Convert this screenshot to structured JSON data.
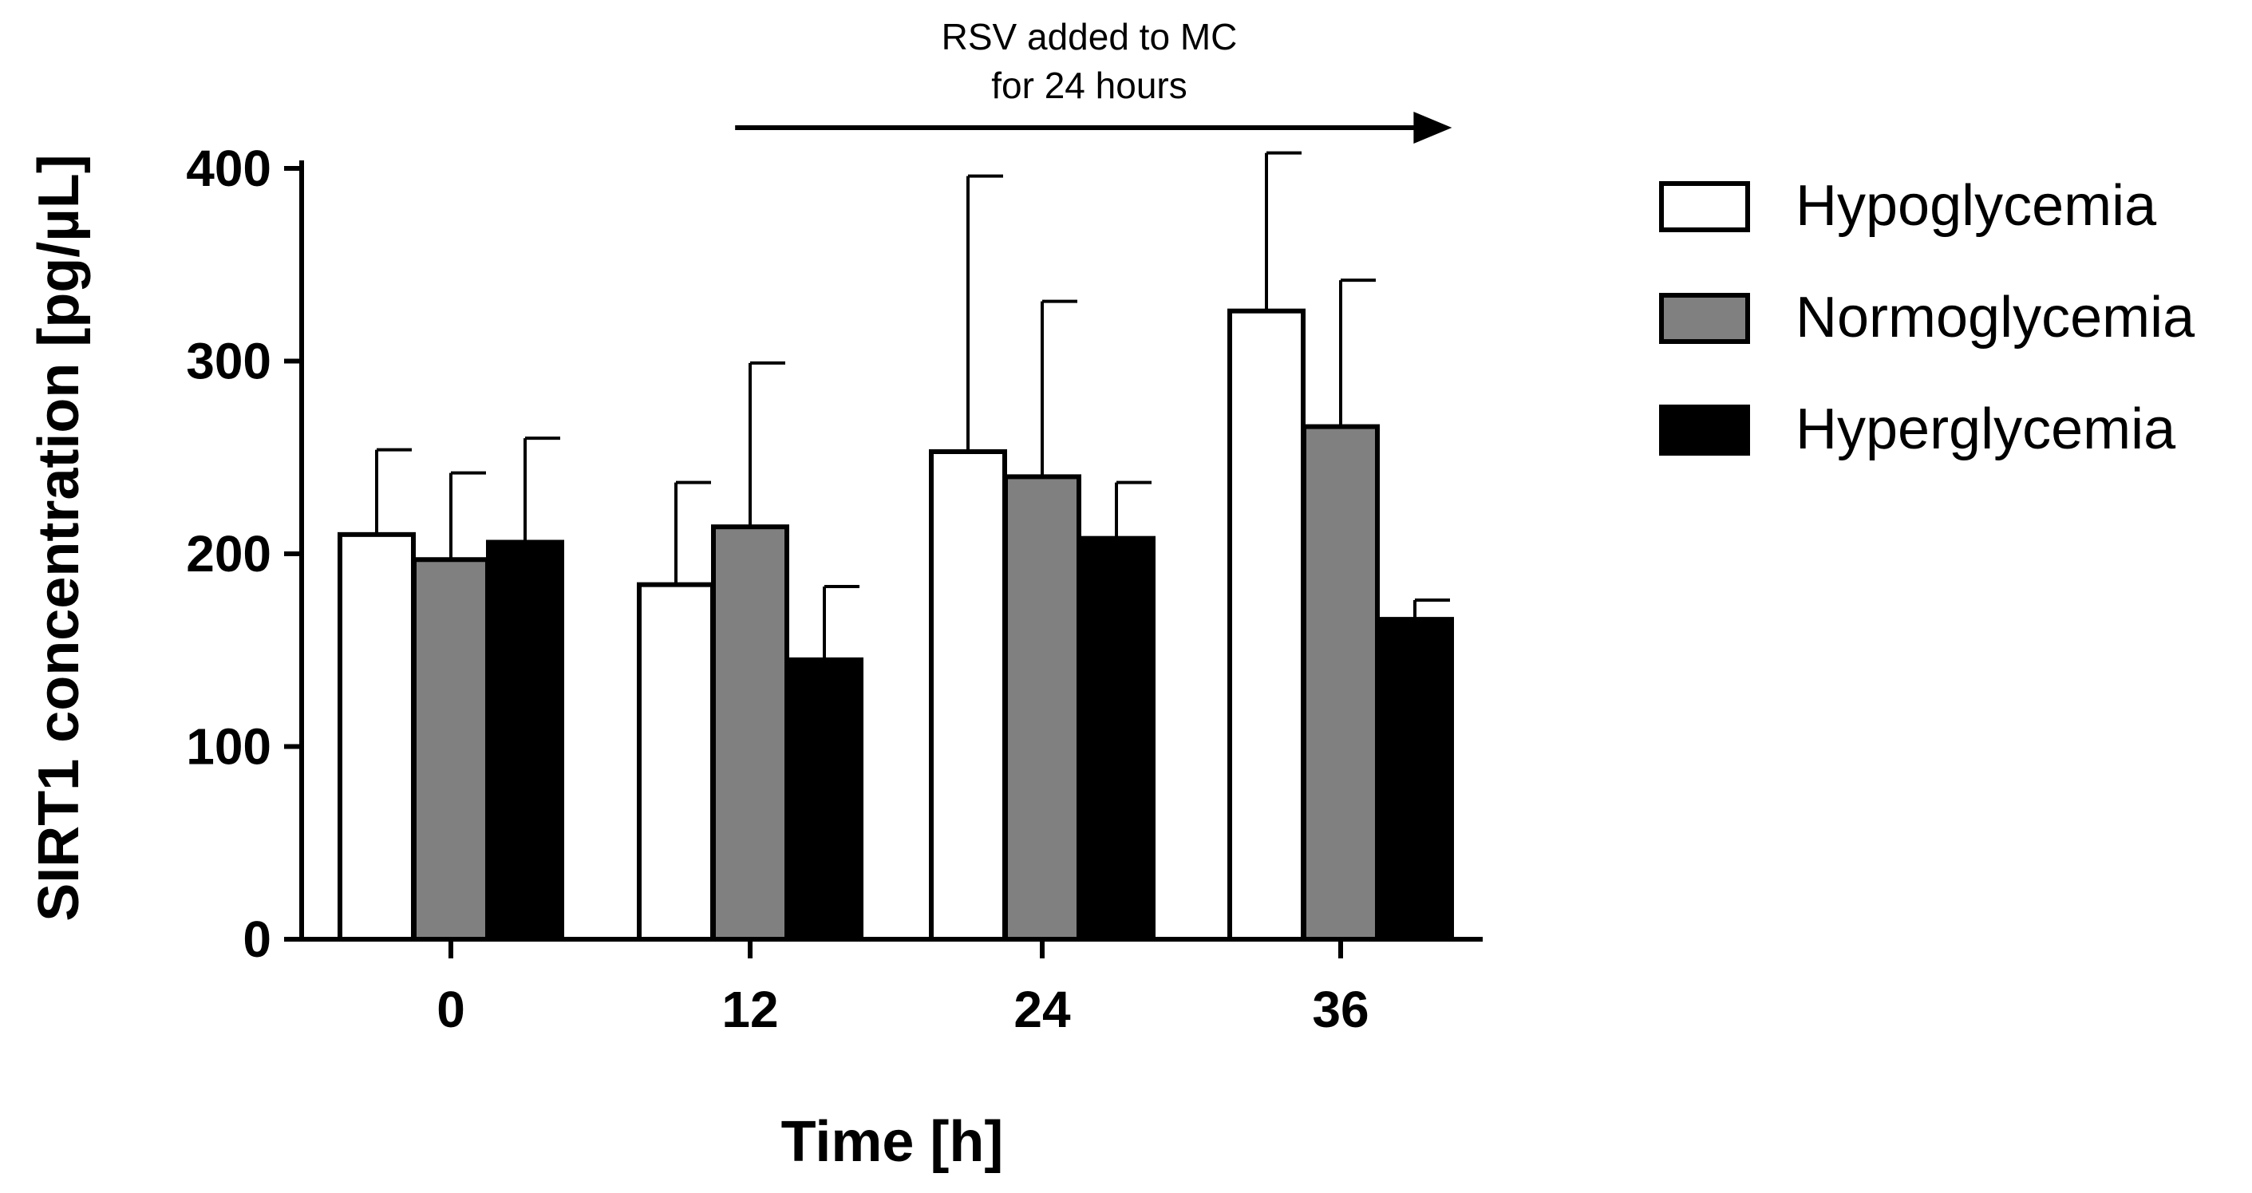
{
  "chart_data": {
    "type": "bar",
    "title": "",
    "xlabel": "Time [h]",
    "ylabel": "SIRT1 concentration [pg/µL]",
    "ylim": [
      0,
      400
    ],
    "yticks": [
      0,
      100,
      200,
      300,
      400
    ],
    "categories": [
      "0",
      "12",
      "24",
      "36"
    ],
    "series": [
      {
        "name": "Hypoglycemia",
        "color": "#ffffff",
        "values": [
          210,
          184,
          253,
          326
        ],
        "error_upper": [
          254,
          237,
          396,
          408
        ]
      },
      {
        "name": "Normoglycemia",
        "color": "#808080",
        "values": [
          197,
          214,
          240,
          266
        ],
        "error_upper": [
          242,
          299,
          331,
          342
        ]
      },
      {
        "name": "Hyperglycemia",
        "color": "#000000",
        "values": [
          206,
          145,
          208,
          166
        ],
        "error_upper": [
          260,
          183,
          237,
          176
        ]
      }
    ],
    "annotation": {
      "lines": [
        "RSV added to MC",
        "for 24 hours"
      ],
      "arrow_from_x": 11.5,
      "arrow_to_x": 40.5
    },
    "legend_position": "right",
    "grid": false
  }
}
